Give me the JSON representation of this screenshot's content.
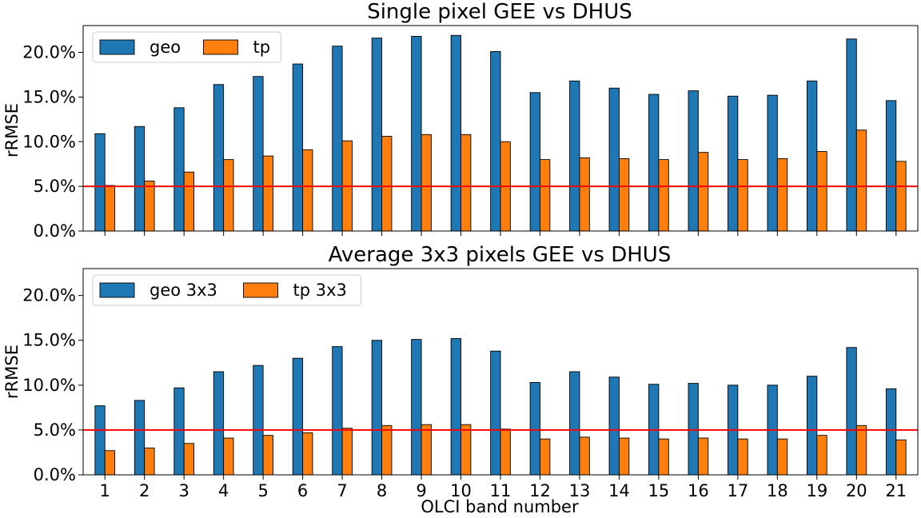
{
  "chart_data": [
    {
      "type": "bar",
      "title": "Single pixel GEE vs DHUS",
      "xlabel": "",
      "ylabel": "rRMSE",
      "ylim": [
        0,
        23
      ],
      "yticks": [
        "0.0%",
        "5.0%",
        "10.0%",
        "15.0%",
        "20.0%"
      ],
      "categories": [
        "1",
        "2",
        "3",
        "4",
        "5",
        "6",
        "7",
        "8",
        "9",
        "10",
        "11",
        "12",
        "13",
        "14",
        "15",
        "16",
        "17",
        "18",
        "19",
        "20",
        "21"
      ],
      "show_xtick_labels": false,
      "reference_line": {
        "value": 5.0,
        "color": "#ff0000"
      },
      "legend": {
        "position": "upper-left",
        "columns": 2
      },
      "series": [
        {
          "name": "geo",
          "color": "#1f77b4",
          "values": [
            10.9,
            11.7,
            13.8,
            16.4,
            17.3,
            18.7,
            20.7,
            21.6,
            21.8,
            21.9,
            20.1,
            15.5,
            16.8,
            16.0,
            15.3,
            15.7,
            15.1,
            15.2,
            16.8,
            21.5,
            14.6
          ]
        },
        {
          "name": "tp",
          "color": "#ff7f0e",
          "values": [
            5.1,
            5.6,
            6.6,
            8.0,
            8.4,
            9.1,
            10.1,
            10.6,
            10.8,
            10.8,
            10.0,
            8.0,
            8.2,
            8.1,
            8.0,
            8.8,
            8.0,
            8.1,
            8.9,
            11.3,
            7.8
          ]
        }
      ]
    },
    {
      "type": "bar",
      "title": "Average 3x3 pixels GEE vs DHUS",
      "xlabel": "OLCI band number",
      "ylabel": "rRMSE",
      "ylim": [
        0,
        23
      ],
      "yticks": [
        "0.0%",
        "5.0%",
        "10.0%",
        "15.0%",
        "20.0%"
      ],
      "categories": [
        "1",
        "2",
        "3",
        "4",
        "5",
        "6",
        "7",
        "8",
        "9",
        "10",
        "11",
        "12",
        "13",
        "14",
        "15",
        "16",
        "17",
        "18",
        "19",
        "20",
        "21"
      ],
      "show_xtick_labels": true,
      "reference_line": {
        "value": 5.0,
        "color": "#ff0000"
      },
      "legend": {
        "position": "upper-left",
        "columns": 2
      },
      "series": [
        {
          "name": "geo 3x3",
          "color": "#1f77b4",
          "values": [
            7.7,
            8.3,
            9.7,
            11.5,
            12.2,
            13.0,
            14.3,
            15.0,
            15.1,
            15.2,
            13.8,
            10.3,
            11.5,
            10.9,
            10.1,
            10.2,
            10.0,
            10.0,
            11.0,
            14.2,
            9.6
          ]
        },
        {
          "name": "tp 3x3",
          "color": "#ff7f0e",
          "values": [
            2.7,
            3.0,
            3.5,
            4.1,
            4.4,
            4.7,
            5.2,
            5.5,
            5.6,
            5.6,
            5.1,
            4.0,
            4.2,
            4.1,
            4.0,
            4.1,
            4.0,
            4.0,
            4.4,
            5.5,
            3.9
          ]
        }
      ]
    }
  ]
}
